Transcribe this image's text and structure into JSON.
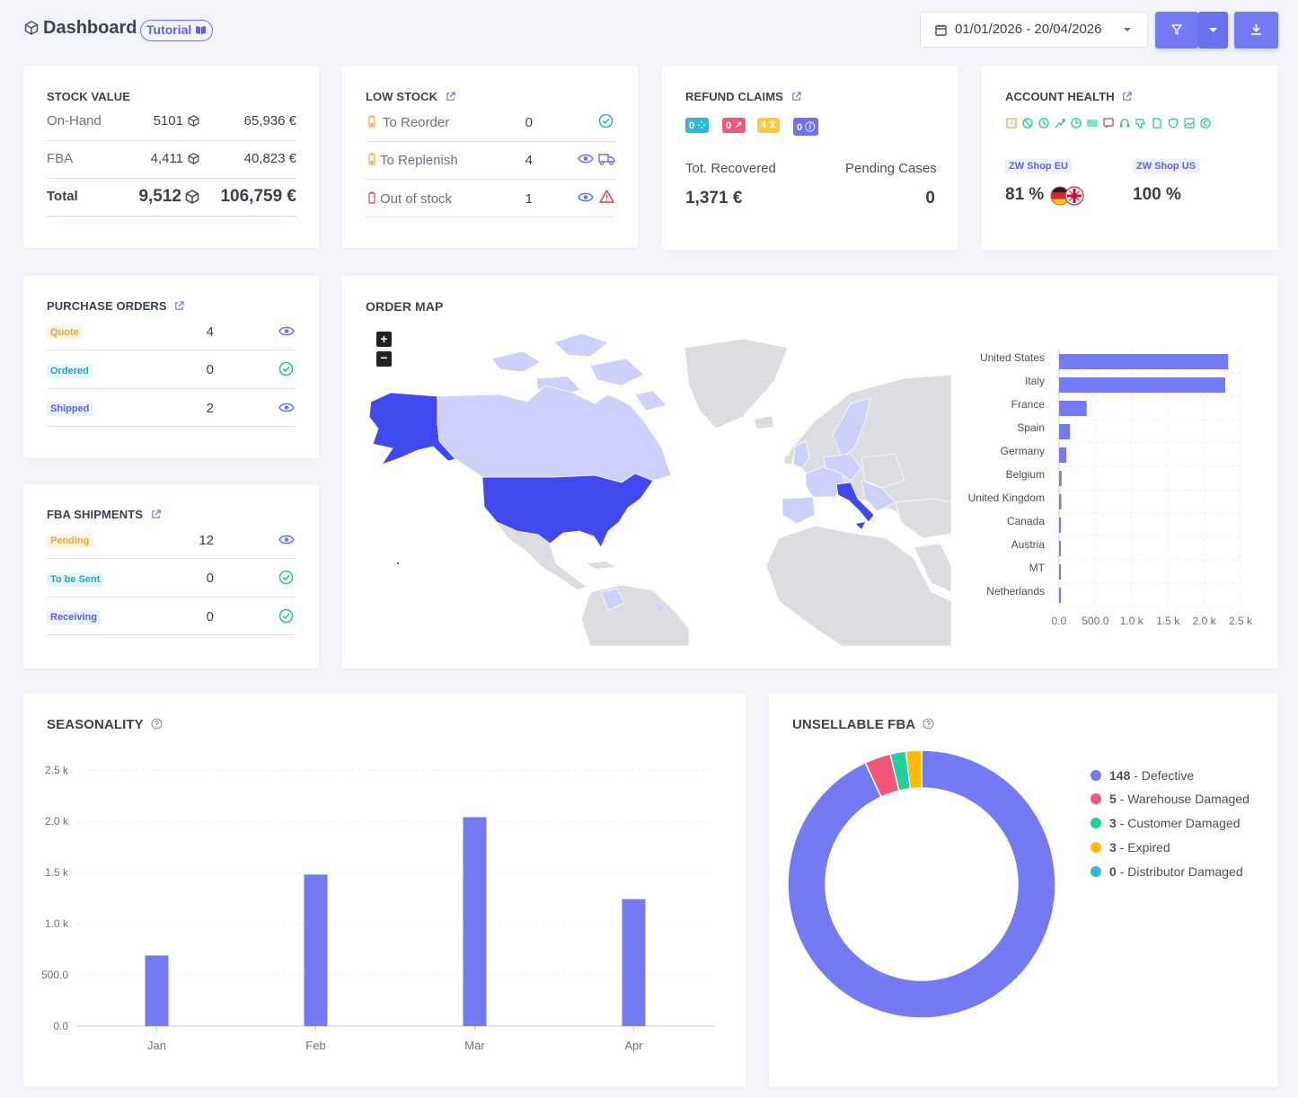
{
  "header": {
    "title": "Dashboard",
    "tutorial": "Tutorial",
    "date_range": "01/01/2026 - 20/04/2026"
  },
  "stock_value": {
    "title": "STOCK VALUE",
    "rows": [
      {
        "label": "On-Hand",
        "qty": "5101",
        "value": "65,936 €"
      },
      {
        "label": "FBA",
        "qty": "4,411",
        "value": "40,823 €"
      },
      {
        "label": "Total",
        "qty": "9,512",
        "value": "106,759 €"
      }
    ]
  },
  "low_stock": {
    "title": "LOW STOCK",
    "rows": [
      {
        "label": "To Reorder",
        "count": "0"
      },
      {
        "label": "To Replenish",
        "count": "4"
      },
      {
        "label": "Out of stock",
        "count": "1"
      }
    ]
  },
  "refund_claims": {
    "title": "REFUND CLAIMS",
    "badges": [
      "0",
      "0",
      "4",
      "0"
    ],
    "recovered_label": "Tot. Recovered",
    "recovered_value": "1,371 €",
    "pending_label": "Pending Cases",
    "pending_value": "0"
  },
  "account_health": {
    "title": "ACCOUNT HEALTH",
    "shops": [
      {
        "name": "ZW Shop EU",
        "percent": "81 %"
      },
      {
        "name": "ZW Shop US",
        "percent": "100 %"
      }
    ]
  },
  "purchase_orders": {
    "title": "PURCHASE ORDERS",
    "rows": [
      {
        "label": "Quote",
        "count": "4"
      },
      {
        "label": "Ordered",
        "count": "0"
      },
      {
        "label": "Shipped",
        "count": "2"
      }
    ]
  },
  "fba_shipments": {
    "title": "FBA SHIPMENTS",
    "rows": [
      {
        "label": "Pending",
        "count": "12"
      },
      {
        "label": "To be Sent",
        "count": "0"
      },
      {
        "label": "Receiving",
        "count": "0"
      }
    ]
  },
  "order_map": {
    "title": "ORDER MAP",
    "zoom_in": "+",
    "zoom_out": "−"
  },
  "seasonality": {
    "title": "SEASONALITY"
  },
  "unsellable": {
    "title": "UNSELLABLE FBA",
    "legend": [
      {
        "value": "148",
        "label": " - Defective"
      },
      {
        "value": "5",
        "label": " - Warehouse Damaged"
      },
      {
        "value": "3",
        "label": " - Customer Damaged"
      },
      {
        "value": "3",
        "label": " - Expired"
      },
      {
        "value": "0",
        "label": " - Distributor Damaged"
      }
    ]
  },
  "colors": {
    "accent": "#747bf2",
    "map_dark": "#4149ee",
    "map_light": "#cdd0fb",
    "land": "#dcdde1"
  },
  "chart_data": [
    {
      "type": "bar",
      "orientation": "horizontal",
      "categories": [
        "United States",
        "Italy",
        "France",
        "Spain",
        "Germany",
        "Belgium",
        "United Kingdom",
        "Canada",
        "Austria",
        "MT",
        "Netherlands"
      ],
      "values": [
        2330,
        2290,
        380,
        150,
        100,
        35,
        30,
        25,
        20,
        10,
        10
      ],
      "xlim": [
        0,
        2500
      ],
      "tick_labels": [
        "0.0",
        "500.0",
        "1.0 k",
        "1.5 k",
        "2.0 k",
        "2.5 k"
      ]
    },
    {
      "type": "bar",
      "categories": [
        "Jan",
        "Feb",
        "Mar",
        "Apr"
      ],
      "values": [
        690,
        1480,
        2040,
        1240
      ],
      "ylim": [
        0,
        2500
      ],
      "tick_labels": [
        "0.0",
        "500.0",
        "1.0 k",
        "1.5 k",
        "2.0 k",
        "2.5 k"
      ]
    },
    {
      "type": "pie",
      "donut": true,
      "categories": [
        "Defective",
        "Warehouse Damaged",
        "Customer Damaged",
        "Expired",
        "Distributor Damaged"
      ],
      "values": [
        148,
        5,
        3,
        3,
        0
      ],
      "colors": [
        "#747bf2",
        "#f2577a",
        "#1fcf9c",
        "#ffb908",
        "#2fb8d8"
      ]
    }
  ]
}
